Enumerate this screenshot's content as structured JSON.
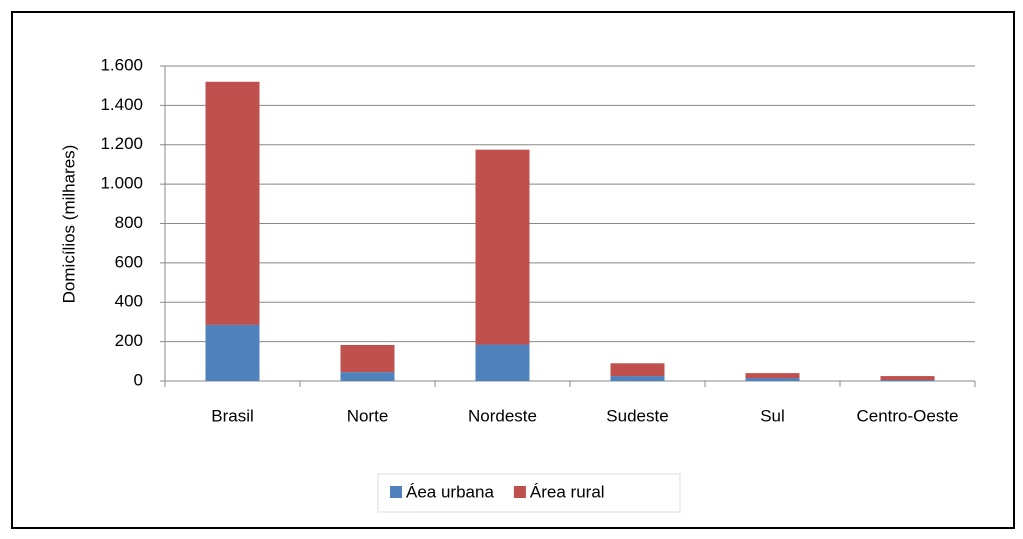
{
  "chart_data": {
    "type": "bar",
    "stacked": true,
    "y_label": "Domicílios (milhares)",
    "categories": [
      "Brasil",
      "Norte",
      "Nordeste",
      "Sudeste",
      "Sul",
      "Centro-Oeste"
    ],
    "series": [
      {
        "name": "Áea urbana",
        "color": "#4f81bd",
        "values": [
          285,
          45,
          185,
          25,
          15,
          5
        ]
      },
      {
        "name": "Área rural",
        "color": "#c0504d",
        "values": [
          1235,
          138,
          990,
          65,
          25,
          20
        ]
      }
    ],
    "ylim": [
      0,
      1600
    ],
    "yticks": [
      0,
      200,
      400,
      600,
      800,
      {
        "value": 1000,
        "label": "1.000"
      },
      {
        "value": 1200,
        "label": "1.200"
      },
      {
        "value": 1400,
        "label": "1.400"
      },
      {
        "value": 1600,
        "label": "1.600"
      }
    ],
    "grid": true,
    "legend": "bottom"
  }
}
